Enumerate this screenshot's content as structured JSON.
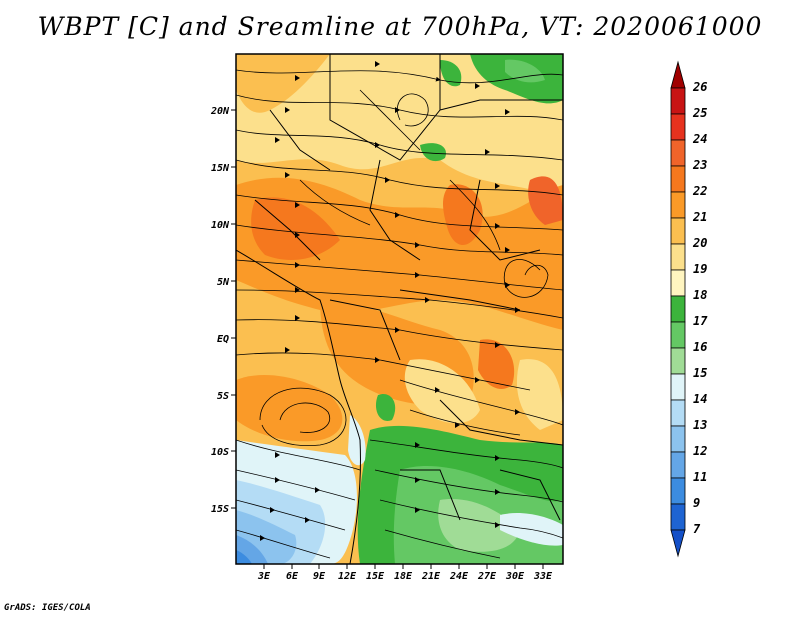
{
  "title": "WBPT [C] and Sreamline at 700hPa, VT: 2020061000",
  "credit": "GrADS: IGES/COLA",
  "map": {
    "lat_labels": [
      "20N",
      "15N",
      "10N",
      "5N",
      "EQ",
      "5S",
      "10S",
      "15S"
    ],
    "lon_labels": [
      "3E",
      "6E",
      "9E",
      "12E",
      "15E",
      "18E",
      "21E",
      "24E",
      "27E",
      "30E",
      "33E"
    ],
    "variable": "WBPT [C]",
    "level": "700hPa"
  },
  "colorbar": {
    "labels": [
      "26",
      "25",
      "24",
      "23",
      "22",
      "21",
      "20",
      "19",
      "18",
      "17",
      "16",
      "15",
      "14",
      "13",
      "12",
      "11",
      "9",
      "7"
    ],
    "colors": [
      "#a00000",
      "#c81414",
      "#e6321e",
      "#f0642a",
      "#f5781e",
      "#fa9a28",
      "#fbbf50",
      "#fce08c",
      "#fff5c0",
      "#3cb43c",
      "#64c864",
      "#a0dc96",
      "#e0f4f8",
      "#b4dcf5",
      "#8cc3ee",
      "#64a6e6",
      "#3c8ce0",
      "#1e64d2",
      "#1450c8"
    ]
  }
}
